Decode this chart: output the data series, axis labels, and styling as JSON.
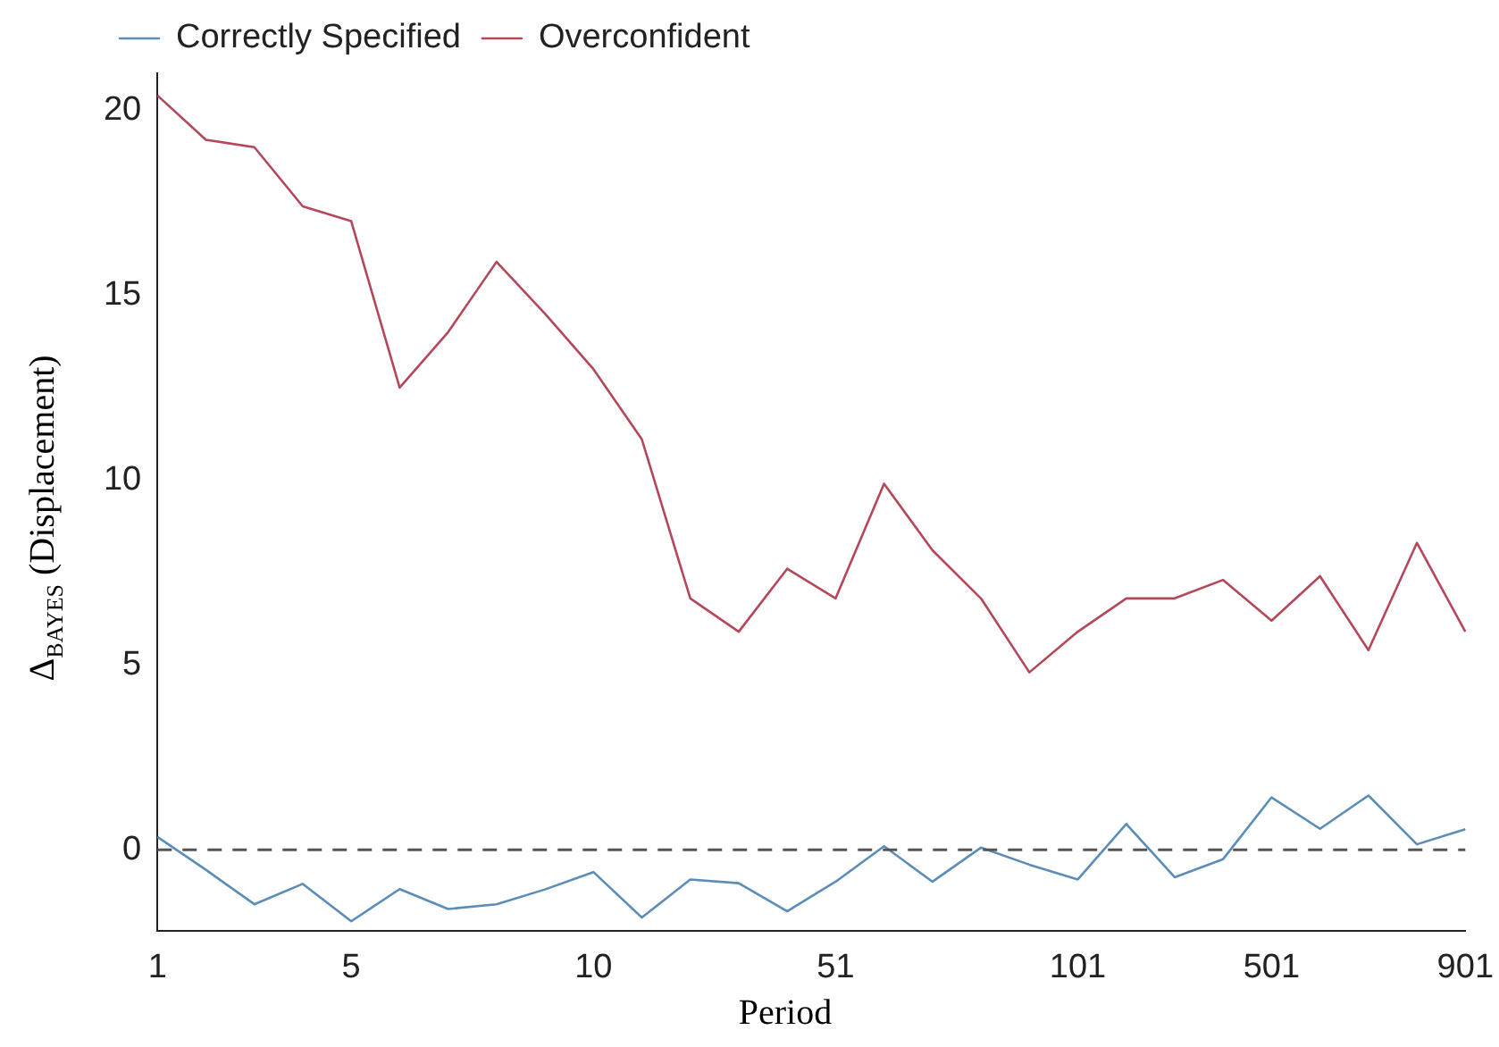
{
  "chart_data": {
    "type": "line",
    "xlabel": "Period",
    "ylabel": "Δ$_{BAYES}$ (Displacement)",
    "categories": [
      "1",
      null,
      null,
      null,
      "5",
      null,
      null,
      null,
      null,
      "10",
      null,
      null,
      null,
      null,
      "51",
      null,
      null,
      null,
      null,
      "101",
      null,
      null,
      null,
      "501",
      null,
      null,
      null,
      "901"
    ],
    "series": [
      {
        "name": "Correctly Specified",
        "color": "#5b8db8",
        "values": [
          0.35,
          -0.54,
          -1.47,
          -0.92,
          -1.93,
          -1.06,
          -1.6,
          -1.47,
          -1.07,
          -0.6,
          -1.83,
          -0.8,
          -0.9,
          -1.66,
          -0.86,
          0.1,
          -0.86,
          0.06,
          -0.4,
          -0.8,
          0.7,
          -0.74,
          -0.25,
          1.42,
          0.57,
          1.47,
          0.15,
          0.56
        ]
      },
      {
        "name": "Overconfident",
        "color": "#b5475a",
        "values": [
          20.4,
          19.2,
          19.0,
          17.4,
          17.0,
          12.5,
          14.0,
          15.9,
          14.5,
          13.0,
          11.1,
          6.8,
          5.9,
          7.6,
          6.8,
          9.9,
          8.1,
          6.8,
          4.8,
          5.9,
          6.8,
          6.8,
          7.3,
          6.2,
          7.4,
          5.4,
          8.3,
          5.9
        ]
      }
    ],
    "ylim": [
      -2.2,
      21
    ],
    "yticks": [
      0,
      5,
      10,
      15,
      20
    ],
    "ref_lines": [
      {
        "axis": "y",
        "value": 0,
        "color": "#555555",
        "line_style": "dashed"
      }
    ],
    "grid": false,
    "legend": "top left",
    "marker": "none",
    "line_style": "solid"
  }
}
